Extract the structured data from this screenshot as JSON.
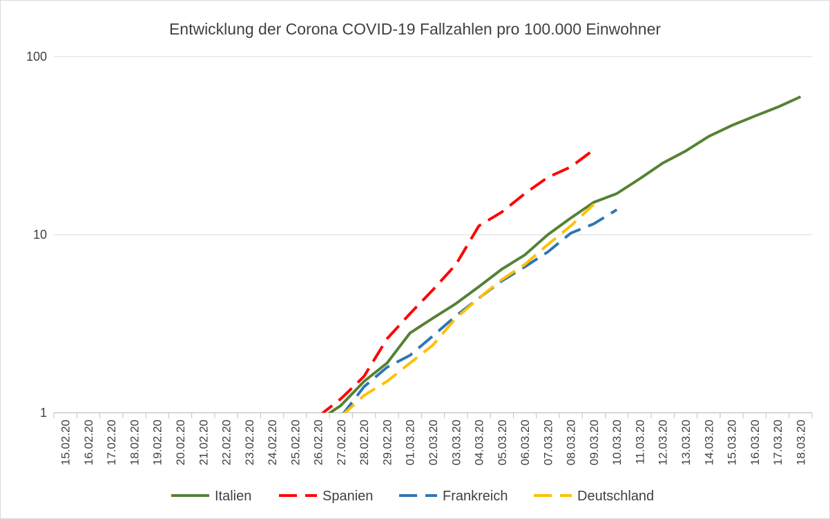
{
  "chart_data": {
    "type": "line",
    "title": "Entwicklung der Corona COVID-19 Fallzahlen pro 100.000 Einwohner",
    "xlabel": "",
    "ylabel": "",
    "y_scale": "log",
    "ylim": [
      1,
      100
    ],
    "y_ticks": [
      "1",
      "10",
      "100"
    ],
    "grid": "horizontal",
    "legend_position": "bottom",
    "categories": [
      "15.02.20",
      "16.02.20",
      "17.02.20",
      "18.02.20",
      "19.02.20",
      "20.02.20",
      "21.02.20",
      "22.02.20",
      "23.02.20",
      "24.02.20",
      "25.02.20",
      "26.02.20",
      "27.02.20",
      "28.02.20",
      "29.02.20",
      "01.03.20",
      "02.03.20",
      "03.03.20",
      "04.03.20",
      "05.03.20",
      "06.03.20",
      "07.03.20",
      "08.03.20",
      "09.03.20",
      "10.03.20",
      "11.03.20",
      "12.03.20",
      "13.03.20",
      "14.03.20",
      "15.03.20",
      "16.03.20",
      "17.03.20",
      "18.03.20"
    ],
    "series": [
      {
        "name": "Italien",
        "color": "#548235",
        "dash": "solid",
        "values": [
          null,
          null,
          null,
          null,
          null,
          null,
          null,
          null,
          null,
          null,
          null,
          0.9,
          1.1,
          1.5,
          1.9,
          2.8,
          3.4,
          4.1,
          5.1,
          6.4,
          7.7,
          10.0,
          12.4,
          15.2,
          17.0,
          20.6,
          25.2,
          29.5,
          35.6,
          41.0,
          46.3,
          52.0,
          59.5
        ]
      },
      {
        "name": "Spanien",
        "color": "#ff0000",
        "dash": "dashed",
        "values": [
          null,
          null,
          null,
          null,
          null,
          null,
          null,
          null,
          null,
          null,
          null,
          0.95,
          1.2,
          1.6,
          2.6,
          3.6,
          4.9,
          6.8,
          11.2,
          13.4,
          17.0,
          21.0,
          24.0,
          30.0,
          null,
          null,
          null,
          null,
          null,
          null,
          null,
          null,
          null
        ]
      },
      {
        "name": "Frankreich",
        "color": "#2e75b6",
        "dash": "dashed",
        "values": [
          null,
          null,
          null,
          null,
          null,
          null,
          null,
          null,
          null,
          null,
          null,
          null,
          0.95,
          1.4,
          1.8,
          2.1,
          2.7,
          3.5,
          4.4,
          5.5,
          6.6,
          8.0,
          10.2,
          11.5,
          13.8,
          null,
          null,
          null,
          null,
          null,
          null,
          null,
          null
        ]
      },
      {
        "name": "Deutschland",
        "color": "#ffc000",
        "dash": "dashed",
        "values": [
          null,
          null,
          null,
          null,
          null,
          null,
          null,
          null,
          null,
          null,
          null,
          null,
          0.95,
          1.25,
          1.5,
          1.9,
          2.4,
          3.4,
          4.4,
          5.6,
          6.8,
          8.8,
          11.2,
          14.8,
          null,
          null,
          null,
          null,
          null,
          null,
          null,
          null,
          null
        ]
      }
    ]
  }
}
